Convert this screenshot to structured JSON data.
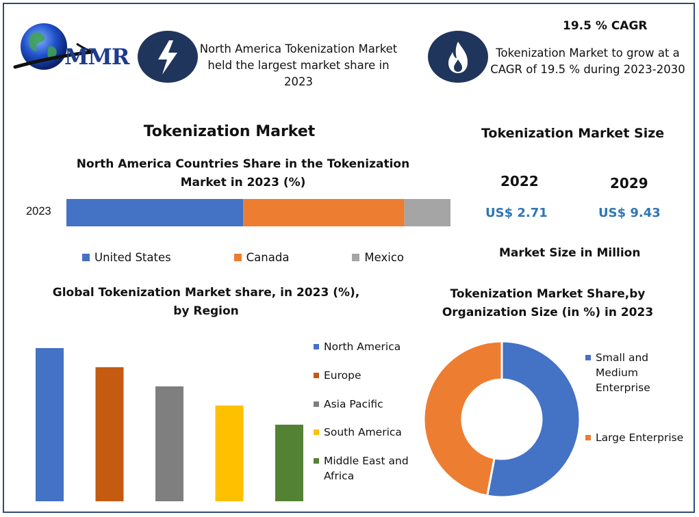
{
  "logo": {
    "text": "MMR"
  },
  "header": {
    "card1_text": "North America Tokenization Market held the largest market share in 2023",
    "card2_heading": "19.5 % CAGR",
    "card2_text": "Tokenization Market to grow at a CAGR of 19.5 % during 2023-2030"
  },
  "icons": {
    "card1": "lightning-bolt-icon",
    "card2": "flame-icon",
    "logo": "globe-icon"
  },
  "market_size": {
    "title": "Tokenization Market Size",
    "years": [
      "2022",
      "2029"
    ],
    "values": [
      "US$ 2.71",
      "US$ 9.43"
    ],
    "unit_note": "Market Size in Million"
  },
  "main_title": "Tokenization Market",
  "colors": {
    "blue": "#4472c4",
    "orange": "#ed7d31",
    "gray": "#a5a5a5",
    "rust": "#c55a11",
    "gray2": "#7f7f7f",
    "yellow": "#ffc000",
    "green": "#548235",
    "navy": "#20355c",
    "money": "#2e75b6"
  },
  "chart_data": [
    {
      "type": "bar",
      "orientation": "horizontal-stacked",
      "title": "North America Countries Share in the Tokenization Market in 2023 (%)",
      "categories": [
        "2023"
      ],
      "series": [
        {
          "name": "United States",
          "values": [
            46
          ]
        },
        {
          "name": "Canada",
          "values": [
            42
          ]
        },
        {
          "name": "Mexico",
          "values": [
            12
          ]
        }
      ],
      "xlim": [
        0,
        100
      ],
      "legend": "bottom"
    },
    {
      "type": "bar",
      "title": "Global Tokenization Market share, in 2023 (%), by Region",
      "categories": [
        "North America",
        "Europe",
        "Asia Pacific",
        "South America",
        "Middle East and Africa"
      ],
      "values": [
        32,
        28,
        24,
        20,
        16
      ],
      "ylim": [
        0,
        32
      ],
      "legend": "right"
    },
    {
      "type": "pie",
      "variant": "donut",
      "title": "Tokenization Market Share,by Organization Size (in %) in 2023",
      "labels": [
        "Small and Medium Enterprise",
        "Large Enterprise"
      ],
      "values": [
        53,
        47
      ],
      "legend": "right"
    }
  ]
}
